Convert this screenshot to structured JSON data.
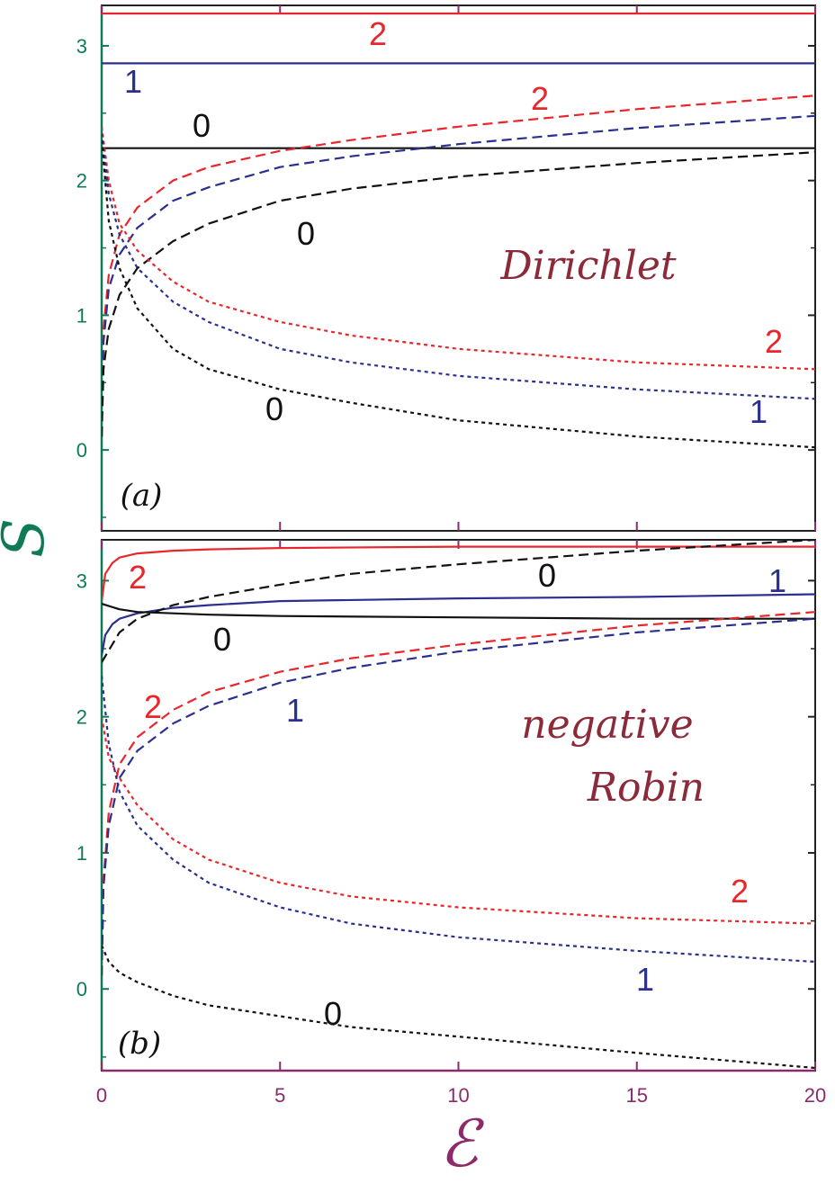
{
  "colors": {
    "red": "#e8262b",
    "blue": "#2b2f8e",
    "black": "#111111",
    "ytick": "#0f7a55",
    "xtick": "#8c2a6a",
    "annotation": "#8b2a38",
    "frame": "#222222"
  },
  "axes": {
    "xlabel": "ℰ",
    "ylabel": "S",
    "xticks": [
      "0",
      "5",
      "10",
      "15",
      "20"
    ],
    "yticks": [
      "0",
      "1",
      "2",
      "3"
    ]
  },
  "chart_data": [
    {
      "type": "line",
      "panel": "(a)",
      "annotation": [
        "Dirichlet"
      ],
      "xlim": [
        0,
        20
      ],
      "ylim": [
        -0.6,
        3.3
      ],
      "series": [
        {
          "label": "2",
          "color": "red",
          "style": "solid",
          "x": [
            0.0,
            20.0
          ],
          "y": [
            3.24,
            3.24
          ]
        },
        {
          "label": "1",
          "color": "blue",
          "style": "solid",
          "x": [
            0.0,
            20.0
          ],
          "y": [
            2.87,
            2.87
          ]
        },
        {
          "label": "0",
          "color": "black",
          "style": "solid",
          "x": [
            0.0,
            20.0
          ],
          "y": [
            2.24,
            2.24
          ]
        },
        {
          "label": "2",
          "color": "red",
          "style": "dashed",
          "x": [
            0.0,
            0.05,
            0.2,
            0.5,
            1.0,
            2.0,
            3.0,
            5.0,
            7.0,
            10.0,
            15.0,
            20.0
          ],
          "y": [
            0.1,
            0.9,
            1.3,
            1.6,
            1.8,
            2.0,
            2.1,
            2.22,
            2.3,
            2.4,
            2.53,
            2.63
          ]
        },
        {
          "label": "1",
          "color": "blue",
          "style": "dashed",
          "x": [
            0.0,
            0.05,
            0.2,
            0.5,
            1.0,
            2.0,
            3.0,
            5.0,
            7.0,
            10.0,
            15.0,
            20.0
          ],
          "y": [
            0.1,
            0.8,
            1.2,
            1.45,
            1.65,
            1.85,
            1.95,
            2.1,
            2.18,
            2.27,
            2.39,
            2.48
          ]
        },
        {
          "label": "0",
          "color": "black",
          "style": "dashed",
          "x": [
            0.0,
            0.05,
            0.2,
            0.5,
            1.0,
            2.0,
            3.0,
            5.0,
            7.0,
            10.0,
            15.0,
            20.0
          ],
          "y": [
            0.1,
            0.6,
            0.9,
            1.15,
            1.35,
            1.55,
            1.68,
            1.85,
            1.94,
            2.03,
            2.13,
            2.21
          ]
        },
        {
          "label": "2",
          "color": "red",
          "style": "dotted",
          "x": [
            0.0,
            0.2,
            0.5,
            1.0,
            2.0,
            3.0,
            5.0,
            7.0,
            10.0,
            15.0,
            20.0
          ],
          "y": [
            2.4,
            2.0,
            1.68,
            1.48,
            1.25,
            1.1,
            0.95,
            0.85,
            0.75,
            0.65,
            0.6
          ]
        },
        {
          "label": "1",
          "color": "blue",
          "style": "dotted",
          "x": [
            0.0,
            0.2,
            0.5,
            1.0,
            2.0,
            3.0,
            5.0,
            7.0,
            10.0,
            15.0,
            20.0
          ],
          "y": [
            2.35,
            1.9,
            1.6,
            1.35,
            1.1,
            0.95,
            0.75,
            0.65,
            0.55,
            0.45,
            0.38
          ]
        },
        {
          "label": "0",
          "color": "black",
          "style": "dotted",
          "x": [
            0.0,
            0.2,
            0.5,
            1.0,
            2.0,
            3.0,
            5.0,
            7.0,
            10.0,
            15.0,
            20.0
          ],
          "y": [
            2.3,
            1.7,
            1.35,
            1.05,
            0.75,
            0.6,
            0.45,
            0.35,
            0.22,
            0.1,
            0.02
          ]
        }
      ]
    },
    {
      "type": "line",
      "panel": "(b)",
      "annotation": [
        "negative",
        "Robin"
      ],
      "xlim": [
        0,
        20
      ],
      "ylim": [
        -0.6,
        3.3
      ],
      "series": [
        {
          "label": "2",
          "color": "red",
          "style": "solid",
          "x": [
            0.0,
            0.1,
            0.3,
            0.5,
            1.0,
            2.0,
            3.0,
            5.0,
            10.0,
            15.0,
            20.0
          ],
          "y": [
            2.85,
            3.05,
            3.13,
            3.17,
            3.2,
            3.22,
            3.23,
            3.24,
            3.25,
            3.25,
            3.25
          ]
        },
        {
          "label": "1",
          "color": "blue",
          "style": "solid",
          "x": [
            0.0,
            0.1,
            0.3,
            0.5,
            1.0,
            2.0,
            3.0,
            5.0,
            10.0,
            15.0,
            20.0
          ],
          "y": [
            2.45,
            2.6,
            2.68,
            2.72,
            2.76,
            2.8,
            2.82,
            2.85,
            2.87,
            2.88,
            2.9
          ]
        },
        {
          "label": "0",
          "color": "black",
          "style": "solid",
          "x": [
            0.0,
            0.5,
            1.0,
            2.0,
            3.0,
            5.0,
            10.0,
            15.0,
            20.0
          ],
          "y": [
            2.83,
            2.79,
            2.77,
            2.76,
            2.75,
            2.74,
            2.73,
            2.72,
            2.72
          ]
        },
        {
          "label": "0",
          "color": "black",
          "style": "dashed",
          "x": [
            0.0,
            0.5,
            1.0,
            2.0,
            3.0,
            5.0,
            7.0,
            10.0,
            15.0,
            20.0
          ],
          "y": [
            2.4,
            2.62,
            2.72,
            2.82,
            2.88,
            2.97,
            3.05,
            3.12,
            3.22,
            3.3
          ]
        },
        {
          "label": "2",
          "color": "red",
          "style": "dashed",
          "x": [
            0.0,
            0.05,
            0.2,
            0.5,
            1.0,
            2.0,
            3.0,
            5.0,
            7.0,
            10.0,
            15.0,
            20.0
          ],
          "y": [
            0.1,
            0.8,
            1.3,
            1.65,
            1.85,
            2.05,
            2.18,
            2.33,
            2.43,
            2.53,
            2.67,
            2.77
          ]
        },
        {
          "label": "1",
          "color": "blue",
          "style": "dashed",
          "x": [
            0.0,
            0.05,
            0.2,
            0.5,
            1.0,
            2.0,
            3.0,
            5.0,
            7.0,
            10.0,
            15.0,
            20.0
          ],
          "y": [
            0.1,
            0.75,
            1.2,
            1.55,
            1.75,
            1.95,
            2.08,
            2.25,
            2.36,
            2.48,
            2.62,
            2.72
          ]
        },
        {
          "label": "2",
          "color": "red",
          "style": "dotted",
          "x": [
            0.0,
            0.2,
            0.5,
            1.0,
            2.0,
            3.0,
            5.0,
            7.0,
            10.0,
            15.0,
            20.0
          ],
          "y": [
            2.0,
            1.7,
            1.55,
            1.35,
            1.1,
            0.95,
            0.78,
            0.68,
            0.6,
            0.52,
            0.48
          ]
        },
        {
          "label": "1",
          "color": "blue",
          "style": "dotted",
          "x": [
            0.0,
            0.2,
            0.5,
            1.0,
            2.0,
            3.0,
            5.0,
            7.0,
            10.0,
            15.0,
            20.0
          ],
          "y": [
            2.3,
            1.8,
            1.45,
            1.2,
            0.95,
            0.78,
            0.6,
            0.48,
            0.38,
            0.28,
            0.2
          ]
        },
        {
          "label": "0",
          "color": "black",
          "style": "dotted",
          "x": [
            0.0,
            0.2,
            0.5,
            1.0,
            2.0,
            3.0,
            5.0,
            7.0,
            10.0,
            15.0,
            20.0
          ],
          "y": [
            0.32,
            0.2,
            0.12,
            0.05,
            -0.05,
            -0.12,
            -0.2,
            -0.28,
            -0.35,
            -0.47,
            -0.58
          ]
        }
      ]
    }
  ]
}
